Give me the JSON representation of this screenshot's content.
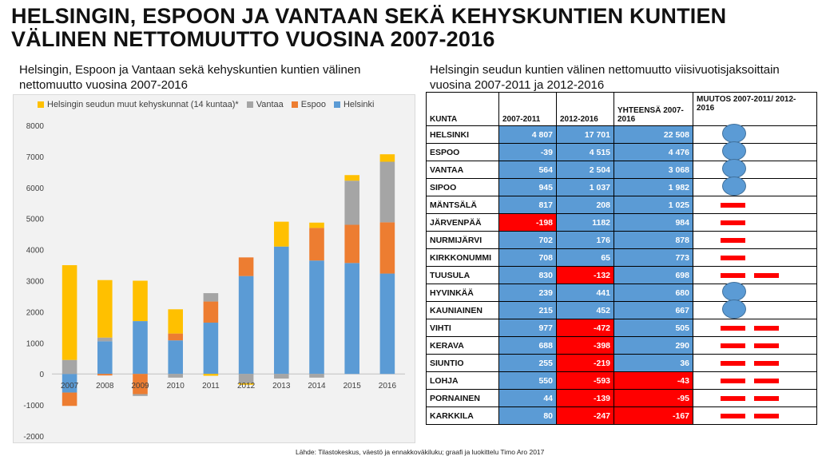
{
  "title": "HELSINGIN, ESPOON JA VANTAAN SEKÄ KEHYSKUNTIEN KUNTIEN VÄLINEN NETTOMUUTTO VUOSINA 2007-2016",
  "chart_caption": "Helsingin, Espoon ja Vantaan sekä kehyskuntien kuntien välinen nettomuutto vuosina 2007-2016",
  "table_caption": "Helsingin seudun kuntien välinen nettomuutto viisivuotisjaksoittain vuosina 2007-2011 ja 2012-2016",
  "source": "Lähde: Tilastokeskus, väestö ja ennakkoväkiluku; graafi ja luokittelu Timo Aro 2017",
  "colors": {
    "helsinki": "#5b9bd5",
    "espoo": "#ed7d31",
    "vantaa": "#a5a5a5",
    "kehys": "#ffc000",
    "negative": "#ff0000"
  },
  "chart_data": {
    "type": "bar",
    "stacked": true,
    "categories": [
      "2007",
      "2008",
      "2009",
      "2010",
      "2011",
      "2012",
      "2013",
      "2014",
      "2015",
      "2016"
    ],
    "series": [
      {
        "name": "Helsinki",
        "color": "#5b9bd5",
        "values": [
          -600,
          1050,
          1700,
          1080,
          1650,
          3150,
          4100,
          3650,
          3570,
          3230
        ]
      },
      {
        "name": "Espoo",
        "color": "#ed7d31",
        "values": [
          -430,
          -50,
          -650,
          220,
          680,
          600,
          0,
          1050,
          1230,
          1650
        ]
      },
      {
        "name": "Vantaa",
        "color": "#a5a5a5",
        "values": [
          450,
          120,
          -60,
          -120,
          270,
          -300,
          -150,
          -120,
          1420,
          1950
        ]
      },
      {
        "name": "Helsingin seudun muut kehyskunnat (14 kuntaa)*",
        "color": "#ffc000",
        "values": [
          3050,
          1850,
          1300,
          780,
          -60,
          -50,
          800,
          170,
          180,
          240
        ]
      }
    ],
    "legend_order": [
      "Helsingin seudun muut kehyskunnat (14 kuntaa)*",
      "Vantaa",
      "Espoo",
      "Helsinki"
    ],
    "yticks": [
      -2000,
      -1000,
      0,
      1000,
      2000,
      3000,
      4000,
      5000,
      6000,
      7000,
      8000
    ],
    "ylim": [
      -2000,
      8000
    ],
    "grid": false,
    "legend": "top"
  },
  "table": {
    "headers": [
      "KUNTA",
      "2007-2011",
      "2012-2016",
      "YHTEENSÄ 2007-2016",
      "MUUTOS 2007-2011/ 2012-2016"
    ],
    "rows": [
      {
        "kunta": "HELSINKI",
        "a": "4 807",
        "b": "17 701",
        "c": "22 508",
        "na": false,
        "nb": false,
        "nc": false,
        "muutos": "smiley"
      },
      {
        "kunta": "ESPOO",
        "a": "-39",
        "b": "4 515",
        "c": "4 476",
        "na": false,
        "nb": false,
        "nc": false,
        "muutos": "smiley"
      },
      {
        "kunta": "VANTAA",
        "a": "564",
        "b": "2 504",
        "c": "3 068",
        "na": false,
        "nb": false,
        "nc": false,
        "muutos": "smiley"
      },
      {
        "kunta": "SIPOO",
        "a": "945",
        "b": "1 037",
        "c": "1 982",
        "na": false,
        "nb": false,
        "nc": false,
        "muutos": "smiley"
      },
      {
        "kunta": "MÄNTSÄLÄ",
        "a": "817",
        "b": "208",
        "c": "1 025",
        "na": false,
        "nb": false,
        "nc": false,
        "muutos": "dash"
      },
      {
        "kunta": "JÄRVENPÄÄ",
        "a": "-198",
        "b": "1182",
        "c": "984",
        "na": true,
        "nb": false,
        "nc": false,
        "muutos": "dash"
      },
      {
        "kunta": "NURMIJÄRVI",
        "a": "702",
        "b": "176",
        "c": "878",
        "na": false,
        "nb": false,
        "nc": false,
        "muutos": "dash"
      },
      {
        "kunta": "KIRKKONUMMI",
        "a": "708",
        "b": "65",
        "c": "773",
        "na": false,
        "nb": false,
        "nc": false,
        "muutos": "dash"
      },
      {
        "kunta": "TUUSULA",
        "a": "830",
        "b": "-132",
        "c": "698",
        "na": false,
        "nb": true,
        "nc": false,
        "muutos": "double-dash"
      },
      {
        "kunta": "HYVINKÄÄ",
        "a": "239",
        "b": "441",
        "c": "680",
        "na": false,
        "nb": false,
        "nc": false,
        "muutos": "smiley"
      },
      {
        "kunta": "KAUNIAINEN",
        "a": "215",
        "b": "452",
        "c": "667",
        "na": false,
        "nb": false,
        "nc": false,
        "muutos": "smiley"
      },
      {
        "kunta": "VIHTI",
        "a": "977",
        "b": "-472",
        "c": "505",
        "na": false,
        "nb": true,
        "nc": false,
        "muutos": "double-dash"
      },
      {
        "kunta": "KERAVA",
        "a": "688",
        "b": "-398",
        "c": "290",
        "na": false,
        "nb": true,
        "nc": false,
        "muutos": "double-dash"
      },
      {
        "kunta": "SIUNTIO",
        "a": "255",
        "b": "-219",
        "c": "36",
        "na": false,
        "nb": true,
        "nc": false,
        "muutos": "double-dash"
      },
      {
        "kunta": "LOHJA",
        "a": "550",
        "b": "-593",
        "c": "-43",
        "na": false,
        "nb": true,
        "nc": true,
        "muutos": "double-dash"
      },
      {
        "kunta": "PORNAINEN",
        "a": "44",
        "b": "-139",
        "c": "-95",
        "na": false,
        "nb": true,
        "nc": true,
        "muutos": "double-dash"
      },
      {
        "kunta": "KARKKILA",
        "a": "80",
        "b": "-247",
        "c": "-167",
        "na": false,
        "nb": true,
        "nc": true,
        "muutos": "double-dash"
      }
    ]
  }
}
